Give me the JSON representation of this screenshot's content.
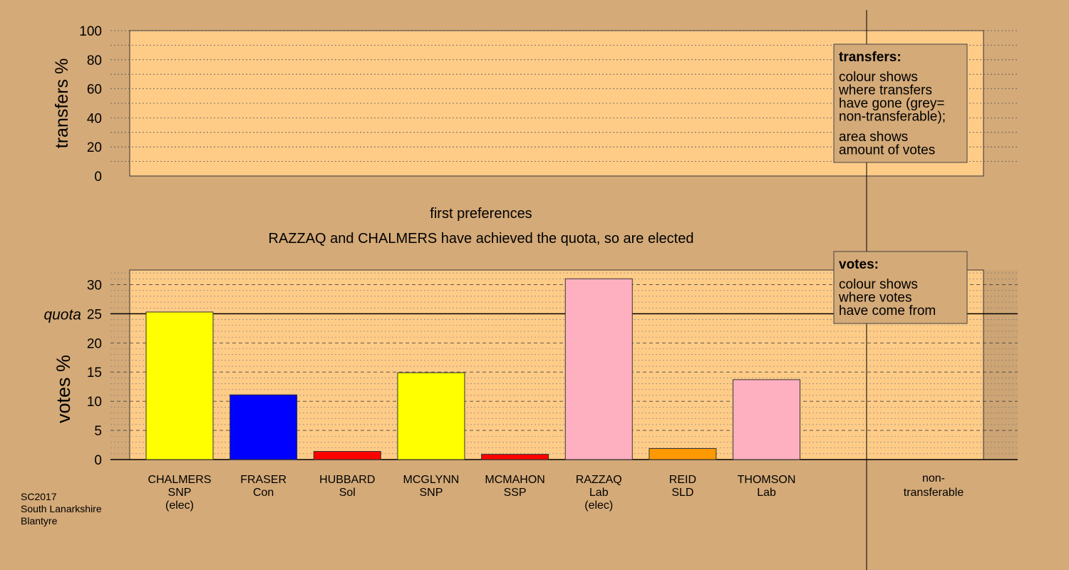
{
  "colors": {
    "background": "#d4aa78",
    "plot_fill": "#ffcc88",
    "legend_fill": "#d4aa78",
    "SNP": "#ffff00",
    "Con": "#0000ff",
    "Sol": "#ff0000",
    "SSP": "#ff0000",
    "Lab": "#ffb0c0",
    "SLD": "#ff9900"
  },
  "chart_data": [
    {
      "type": "bar",
      "title": "",
      "ylabel": "transfers %",
      "ylim": [
        0,
        100
      ],
      "yticks": [
        "0",
        "20",
        "40",
        "60",
        "80",
        "100"
      ],
      "categories": [],
      "values": [],
      "legend": {
        "title": "transfers:",
        "lines": [
          "colour shows",
          "where transfers",
          "have gone (grey=",
          "non-transferable);",
          "area shows",
          "amount of votes"
        ],
        "placement": "top-right"
      }
    },
    {
      "type": "bar",
      "title": "first preferences",
      "subtitle": "RAZZAQ and CHALMERS have achieved the quota, so are elected",
      "ylabel": "votes %",
      "ylim": [
        0,
        32.5
      ],
      "yticks": [
        "0",
        "5",
        "10",
        "15",
        "20",
        "25",
        "30"
      ],
      "quota": 25,
      "quota_label": "quota",
      "categories": [
        {
          "name": "CHALMERS",
          "party": "SNP",
          "note": "(elec)"
        },
        {
          "name": "FRASER",
          "party": "Con",
          "note": ""
        },
        {
          "name": "HUBBARD",
          "party": "Sol",
          "note": ""
        },
        {
          "name": "MCGLYNN",
          "party": "SNP",
          "note": ""
        },
        {
          "name": "MCMAHON",
          "party": "SSP",
          "note": ""
        },
        {
          "name": "RAZZAQ",
          "party": "Lab",
          "note": "(elec)"
        },
        {
          "name": "REID",
          "party": "SLD",
          "note": ""
        },
        {
          "name": "THOMSON",
          "party": "Lab",
          "note": ""
        }
      ],
      "values": [
        25.3,
        11.1,
        1.4,
        14.9,
        0.9,
        31.0,
        1.9,
        13.7
      ],
      "extra_category": {
        "line1": "non-",
        "line2": "transferable"
      },
      "legend": {
        "title": "votes:",
        "lines": [
          "colour shows",
          "where votes",
          "have come from"
        ],
        "placement": "top-right"
      }
    }
  ],
  "footer": [
    "SC2017",
    "South Lanarkshire",
    "Blantyre"
  ]
}
